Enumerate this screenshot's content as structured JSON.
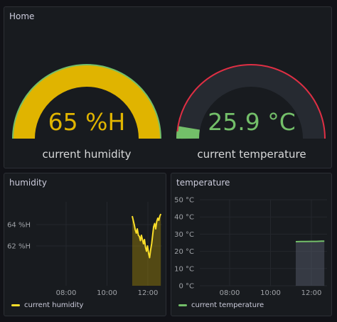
{
  "home_panel": {
    "title": "Home",
    "humidity_gauge": {
      "value_text": "65 %H",
      "label": "current humidity",
      "fill_fraction": 1.0,
      "color": "#e0b400",
      "threshold_color": "#73bf69"
    },
    "temperature_gauge": {
      "value_text": "25.9 °C",
      "label": "current temperature",
      "fill_fraction": 0.05,
      "color": "#73bf69",
      "threshold_color": "#e02f44"
    }
  },
  "humidity_panel": {
    "title": "humidity",
    "legend": "current humidity",
    "color": "#fade2a"
  },
  "temperature_panel": {
    "title": "temperature",
    "legend": "current temperature",
    "color": "#73bf69"
  },
  "chart_data": [
    {
      "type": "line",
      "title": "humidity",
      "y_ticks": [
        "64 %H",
        "62 %H"
      ],
      "x_ticks": [
        "08:00",
        "10:00",
        "12:00"
      ],
      "series": [
        {
          "name": "current humidity",
          "x": [
            "11:14",
            "11:17",
            "11:20",
            "11:23",
            "11:26",
            "11:29",
            "11:32",
            "11:35",
            "11:38",
            "11:41",
            "11:44",
            "11:47",
            "11:50",
            "11:53",
            "11:56",
            "11:59",
            "12:02",
            "12:05",
            "12:08",
            "12:11",
            "12:14",
            "12:17",
            "12:20",
            "12:23",
            "12:26",
            "12:29",
            "12:32",
            "12:35",
            "12:38"
          ],
          "values": [
            64.8,
            64.4,
            64.0,
            63.5,
            63.2,
            63.6,
            63.0,
            62.9,
            62.5,
            63.0,
            62.6,
            62.2,
            62.6,
            61.9,
            61.5,
            62.0,
            61.3,
            60.9,
            61.6,
            62.2,
            63.0,
            63.8,
            64.1,
            63.6,
            64.3,
            64.6,
            64.4,
            64.8,
            65.0
          ]
        }
      ]
    },
    {
      "type": "line",
      "title": "temperature",
      "y_ticks": [
        "50 °C",
        "40 °C",
        "30 °C",
        "20 °C",
        "10 °C",
        "0 °C"
      ],
      "x_ticks": [
        "08:00",
        "10:00",
        "12:00"
      ],
      "ylim": [
        0,
        50
      ],
      "series": [
        {
          "name": "current temperature",
          "x": [
            "11:14",
            "11:30",
            "11:45",
            "12:00",
            "12:15",
            "12:30",
            "12:38"
          ],
          "values": [
            25.6,
            25.7,
            25.7,
            25.8,
            25.8,
            25.9,
            25.9
          ]
        }
      ]
    }
  ]
}
